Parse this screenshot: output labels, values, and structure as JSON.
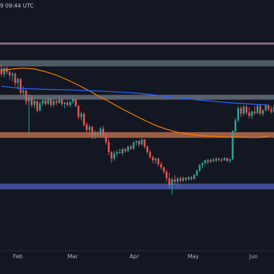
{
  "header": {
    "timestamp_fragment": "9 09:44 UTC"
  },
  "colors": {
    "background": "#131722",
    "candle_up": "#26a69a",
    "candle_down": "#ef5350",
    "ma_fast": "#2962ff",
    "ma_slow": "#f57c00",
    "zone_top": "#8c6a86",
    "zone_resistance": "#5d6675",
    "zone_mid": "#6c7480",
    "zone_support": "#b56a4c",
    "zone_bottom": "#4a58a8"
  },
  "chart_data": {
    "type": "candlestick",
    "x_ticks": [
      "Feb",
      "Mar",
      "Apr",
      "May",
      "Jun"
    ],
    "ylim": [
      0,
      100
    ],
    "grid": false,
    "zones": [
      {
        "name": "zone-top",
        "low": 86.5,
        "high": 87.5
      },
      {
        "name": "zone-resistance",
        "low": 76.6,
        "high": 79.4
      },
      {
        "name": "zone-mid",
        "low": 61.4,
        "high": 63.6
      },
      {
        "name": "zone-support",
        "low": 44.0,
        "high": 46.6
      },
      {
        "name": "zone-bottom",
        "low": 20.5,
        "high": 23.1
      }
    ],
    "candles": [
      {
        "o": 75.5,
        "h": 77.5,
        "l": 72.0,
        "c": 73.0
      },
      {
        "o": 73.0,
        "h": 76.5,
        "l": 71.5,
        "c": 75.8
      },
      {
        "o": 75.8,
        "h": 76.5,
        "l": 72.8,
        "c": 74.0
      },
      {
        "o": 74.0,
        "h": 75.5,
        "l": 70.5,
        "c": 72.5
      },
      {
        "o": 72.5,
        "h": 74.0,
        "l": 69.8,
        "c": 73.2
      },
      {
        "o": 73.2,
        "h": 73.8,
        "l": 67.5,
        "c": 69.0
      },
      {
        "o": 69.0,
        "h": 71.5,
        "l": 66.0,
        "c": 70.8
      },
      {
        "o": 70.8,
        "h": 71.2,
        "l": 63.5,
        "c": 64.6
      },
      {
        "o": 64.6,
        "h": 67.5,
        "l": 63.0,
        "c": 65.5
      },
      {
        "o": 65.5,
        "h": 66.0,
        "l": 59.0,
        "c": 60.5
      },
      {
        "o": 60.5,
        "h": 64.0,
        "l": 45.5,
        "c": 62.5
      },
      {
        "o": 62.5,
        "h": 63.5,
        "l": 58.0,
        "c": 59.0
      },
      {
        "o": 59.0,
        "h": 61.5,
        "l": 57.5,
        "c": 60.8
      },
      {
        "o": 60.8,
        "h": 61.0,
        "l": 55.5,
        "c": 56.5
      },
      {
        "o": 56.5,
        "h": 60.5,
        "l": 56.0,
        "c": 59.8
      },
      {
        "o": 59.8,
        "h": 61.8,
        "l": 58.5,
        "c": 61.0
      },
      {
        "o": 61.0,
        "h": 62.0,
        "l": 58.6,
        "c": 59.5
      },
      {
        "o": 59.5,
        "h": 62.5,
        "l": 59.0,
        "c": 61.8
      },
      {
        "o": 61.8,
        "h": 62.0,
        "l": 58.0,
        "c": 59.0
      },
      {
        "o": 59.0,
        "h": 61.5,
        "l": 58.2,
        "c": 60.8
      },
      {
        "o": 60.8,
        "h": 61.2,
        "l": 59.0,
        "c": 60.0
      },
      {
        "o": 60.0,
        "h": 62.0,
        "l": 59.5,
        "c": 61.5
      },
      {
        "o": 61.5,
        "h": 62.0,
        "l": 58.5,
        "c": 59.5
      },
      {
        "o": 59.5,
        "h": 60.5,
        "l": 57.5,
        "c": 60.0
      },
      {
        "o": 60.0,
        "h": 61.0,
        "l": 58.5,
        "c": 59.0
      },
      {
        "o": 59.0,
        "h": 60.5,
        "l": 58.0,
        "c": 60.5
      },
      {
        "o": 60.5,
        "h": 62.5,
        "l": 59.5,
        "c": 61.8
      },
      {
        "o": 61.8,
        "h": 62.0,
        "l": 58.0,
        "c": 58.5
      },
      {
        "o": 58.5,
        "h": 59.0,
        "l": 52.5,
        "c": 53.5
      },
      {
        "o": 53.5,
        "h": 56.0,
        "l": 52.0,
        "c": 55.0
      },
      {
        "o": 55.0,
        "h": 55.5,
        "l": 49.0,
        "c": 50.0
      },
      {
        "o": 50.0,
        "h": 51.0,
        "l": 46.5,
        "c": 47.5
      },
      {
        "o": 47.5,
        "h": 50.0,
        "l": 46.0,
        "c": 49.0
      },
      {
        "o": 49.0,
        "h": 49.5,
        "l": 43.5,
        "c": 44.8
      },
      {
        "o": 44.8,
        "h": 47.5,
        "l": 43.5,
        "c": 46.5
      },
      {
        "o": 46.5,
        "h": 47.0,
        "l": 45.0,
        "c": 45.5
      },
      {
        "o": 45.5,
        "h": 49.0,
        "l": 45.0,
        "c": 48.2
      },
      {
        "o": 48.2,
        "h": 49.5,
        "l": 44.0,
        "c": 45.0
      },
      {
        "o": 45.0,
        "h": 46.0,
        "l": 41.0,
        "c": 42.0
      },
      {
        "o": 42.0,
        "h": 43.5,
        "l": 36.0,
        "c": 37.5
      },
      {
        "o": 37.5,
        "h": 38.0,
        "l": 32.5,
        "c": 34.5
      },
      {
        "o": 34.5,
        "h": 38.0,
        "l": 33.5,
        "c": 36.8
      },
      {
        "o": 36.8,
        "h": 38.5,
        "l": 35.5,
        "c": 37.5
      },
      {
        "o": 37.5,
        "h": 39.0,
        "l": 36.8,
        "c": 37.0
      },
      {
        "o": 37.0,
        "h": 39.5,
        "l": 36.0,
        "c": 38.8
      },
      {
        "o": 38.8,
        "h": 39.5,
        "l": 37.2,
        "c": 38.0
      },
      {
        "o": 38.0,
        "h": 40.5,
        "l": 37.5,
        "c": 40.0
      },
      {
        "o": 40.0,
        "h": 40.8,
        "l": 38.5,
        "c": 39.0
      },
      {
        "o": 39.0,
        "h": 42.5,
        "l": 38.5,
        "c": 41.8
      },
      {
        "o": 41.8,
        "h": 43.0,
        "l": 40.5,
        "c": 42.5
      },
      {
        "o": 42.5,
        "h": 43.0,
        "l": 40.0,
        "c": 41.0
      },
      {
        "o": 41.0,
        "h": 43.8,
        "l": 40.5,
        "c": 43.2
      },
      {
        "o": 43.2,
        "h": 43.5,
        "l": 39.0,
        "c": 40.0
      },
      {
        "o": 40.0,
        "h": 40.5,
        "l": 36.5,
        "c": 37.5
      },
      {
        "o": 37.5,
        "h": 38.5,
        "l": 34.5,
        "c": 35.2
      },
      {
        "o": 35.2,
        "h": 36.0,
        "l": 32.5,
        "c": 33.8
      },
      {
        "o": 33.8,
        "h": 35.0,
        "l": 32.0,
        "c": 34.5
      },
      {
        "o": 34.5,
        "h": 35.0,
        "l": 31.0,
        "c": 32.0
      },
      {
        "o": 32.0,
        "h": 33.0,
        "l": 29.5,
        "c": 30.5
      },
      {
        "o": 30.5,
        "h": 31.0,
        "l": 27.5,
        "c": 28.5
      },
      {
        "o": 28.5,
        "h": 29.5,
        "l": 24.0,
        "c": 25.5
      },
      {
        "o": 25.5,
        "h": 28.0,
        "l": 21.0,
        "c": 22.5
      },
      {
        "o": 22.5,
        "h": 26.0,
        "l": 18.0,
        "c": 25.0
      },
      {
        "o": 25.0,
        "h": 27.0,
        "l": 23.0,
        "c": 24.0
      },
      {
        "o": 24.0,
        "h": 26.0,
        "l": 21.5,
        "c": 25.5
      },
      {
        "o": 25.5,
        "h": 26.5,
        "l": 23.5,
        "c": 24.5
      },
      {
        "o": 24.5,
        "h": 26.2,
        "l": 23.8,
        "c": 25.8
      },
      {
        "o": 25.8,
        "h": 26.0,
        "l": 24.0,
        "c": 25.0
      },
      {
        "o": 25.0,
        "h": 26.5,
        "l": 24.5,
        "c": 26.0
      },
      {
        "o": 26.0,
        "h": 26.5,
        "l": 24.5,
        "c": 25.2
      },
      {
        "o": 25.2,
        "h": 27.5,
        "l": 25.0,
        "c": 27.0
      },
      {
        "o": 27.0,
        "h": 29.5,
        "l": 26.5,
        "c": 29.0
      },
      {
        "o": 29.0,
        "h": 32.0,
        "l": 28.5,
        "c": 31.5
      },
      {
        "o": 31.5,
        "h": 33.0,
        "l": 30.0,
        "c": 32.5
      },
      {
        "o": 32.5,
        "h": 34.0,
        "l": 31.5,
        "c": 33.8
      },
      {
        "o": 33.8,
        "h": 34.5,
        "l": 32.0,
        "c": 33.0
      },
      {
        "o": 33.0,
        "h": 34.5,
        "l": 32.5,
        "c": 34.0
      },
      {
        "o": 34.0,
        "h": 34.8,
        "l": 32.8,
        "c": 33.5
      },
      {
        "o": 33.5,
        "h": 35.0,
        "l": 33.0,
        "c": 34.5
      },
      {
        "o": 34.5,
        "h": 35.0,
        "l": 33.2,
        "c": 34.0
      },
      {
        "o": 34.0,
        "h": 34.8,
        "l": 33.0,
        "c": 33.8
      },
      {
        "o": 33.8,
        "h": 35.2,
        "l": 33.5,
        "c": 34.8
      },
      {
        "o": 34.8,
        "h": 35.0,
        "l": 33.0,
        "c": 33.5
      },
      {
        "o": 33.5,
        "h": 34.5,
        "l": 32.5,
        "c": 34.2
      },
      {
        "o": 34.2,
        "h": 47.5,
        "l": 33.8,
        "c": 47.0
      },
      {
        "o": 47.0,
        "h": 53.0,
        "l": 46.0,
        "c": 52.0
      },
      {
        "o": 52.0,
        "h": 58.5,
        "l": 51.0,
        "c": 57.5
      },
      {
        "o": 57.5,
        "h": 58.5,
        "l": 53.5,
        "c": 55.0
      },
      {
        "o": 55.0,
        "h": 59.0,
        "l": 54.0,
        "c": 58.2
      },
      {
        "o": 58.2,
        "h": 59.0,
        "l": 54.5,
        "c": 55.5
      },
      {
        "o": 55.5,
        "h": 58.0,
        "l": 53.0,
        "c": 54.0
      },
      {
        "o": 54.0,
        "h": 56.5,
        "l": 52.5,
        "c": 56.0
      },
      {
        "o": 56.0,
        "h": 58.5,
        "l": 54.5,
        "c": 55.2
      },
      {
        "o": 55.2,
        "h": 59.2,
        "l": 55.0,
        "c": 58.5
      },
      {
        "o": 58.5,
        "h": 59.0,
        "l": 54.0,
        "c": 55.0
      },
      {
        "o": 55.0,
        "h": 57.0,
        "l": 53.8,
        "c": 56.5
      },
      {
        "o": 56.5,
        "h": 59.5,
        "l": 56.0,
        "c": 58.8
      },
      {
        "o": 58.8,
        "h": 59.2,
        "l": 56.0,
        "c": 57.0
      },
      {
        "o": 57.0,
        "h": 58.5,
        "l": 55.0,
        "c": 55.8
      },
      {
        "o": 55.8,
        "h": 59.0,
        "l": 55.5,
        "c": 58.0
      },
      {
        "o": 58.0,
        "h": 60.5,
        "l": 57.0,
        "c": 59.5
      },
      {
        "o": 59.5,
        "h": 60.0,
        "l": 56.5,
        "c": 57.5
      },
      {
        "o": 57.5,
        "h": 58.5,
        "l": 55.0,
        "c": 56.0
      },
      {
        "o": 56.0,
        "h": 58.0,
        "l": 55.5,
        "c": 57.5
      },
      {
        "o": 57.5,
        "h": 58.0,
        "l": 55.8,
        "c": 56.5
      },
      {
        "o": 56.5,
        "h": 57.0,
        "l": 52.5,
        "c": 53.5
      },
      {
        "o": 53.5,
        "h": 57.5,
        "l": 53.0,
        "c": 56.8
      },
      {
        "o": 56.8,
        "h": 62.5,
        "l": 56.0,
        "c": 61.5
      }
    ],
    "ma_fast": [
      [
        0,
        67.5
      ],
      [
        4,
        67.0
      ],
      [
        8,
        66.5
      ],
      [
        14,
        66.2
      ],
      [
        20,
        66.0
      ],
      [
        26,
        65.8
      ],
      [
        32,
        65.5
      ],
      [
        38,
        65.2
      ],
      [
        44,
        64.8
      ],
      [
        50,
        64.3
      ],
      [
        56,
        63.5
      ],
      [
        62,
        62.6
      ],
      [
        68,
        61.8
      ],
      [
        72,
        61.2
      ],
      [
        76,
        60.8
      ],
      [
        80,
        60.3
      ],
      [
        84,
        59.9
      ],
      [
        88,
        59.6
      ],
      [
        92,
        59.3
      ],
      [
        95,
        59.1
      ],
      [
        97,
        58.9
      ]
    ],
    "ma_slow": [
      [
        0,
        74.8
      ],
      [
        4,
        75.4
      ],
      [
        8,
        75.8
      ],
      [
        12,
        75.4
      ],
      [
        16,
        74.2
      ],
      [
        20,
        72.6
      ],
      [
        24,
        70.4
      ],
      [
        28,
        68.0
      ],
      [
        32,
        65.4
      ],
      [
        36,
        62.6
      ],
      [
        40,
        59.9
      ],
      [
        44,
        57.1
      ],
      [
        48,
        54.5
      ],
      [
        52,
        52.0
      ],
      [
        56,
        49.7
      ],
      [
        60,
        47.9
      ],
      [
        64,
        46.5
      ],
      [
        68,
        45.7
      ],
      [
        72,
        45.1
      ],
      [
        76,
        44.7
      ],
      [
        80,
        44.4
      ],
      [
        84,
        44.3
      ],
      [
        88,
        44.3
      ],
      [
        92,
        44.1
      ],
      [
        95,
        44.3
      ],
      [
        97,
        44.9
      ]
    ]
  }
}
